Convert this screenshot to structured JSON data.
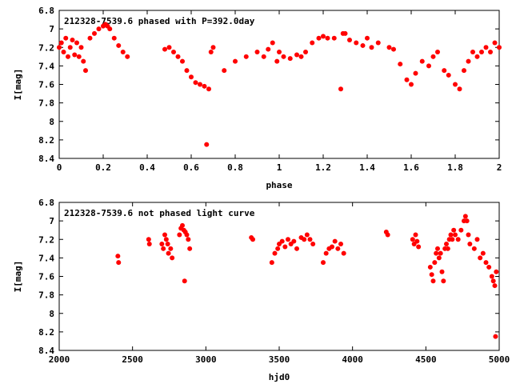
{
  "chart_data": [
    {
      "type": "scatter",
      "title": "212328-7539.6 phased with P=392.0day",
      "xlabel": "phase",
      "ylabel": "I[mag]",
      "xlim": [
        0,
        2
      ],
      "ylim": [
        8.4,
        6.8
      ],
      "y_inverted": true,
      "xticks": [
        "0",
        "0.2",
        "0.4",
        "0.6",
        "0.8",
        "1",
        "1.2",
        "1.4",
        "1.6",
        "1.8",
        "2"
      ],
      "xtick_values": [
        0,
        0.2,
        0.4,
        0.6,
        0.8,
        1.0,
        1.2,
        1.4,
        1.6,
        1.8,
        2.0
      ],
      "yticks": [
        "6.8",
        "7",
        "7.2",
        "7.4",
        "7.6",
        "7.8",
        "8",
        "8.2",
        "8.4"
      ],
      "ytick_values": [
        6.8,
        7.0,
        7.2,
        7.4,
        7.6,
        7.8,
        8.0,
        8.2,
        8.4
      ],
      "marker_color": "#ff0000",
      "grid": false,
      "series": [
        {
          "points": [
            [
              0.0,
              7.2
            ],
            [
              0.01,
              7.15
            ],
            [
              0.02,
              7.25
            ],
            [
              0.03,
              7.1
            ],
            [
              0.04,
              7.3
            ],
            [
              0.05,
              7.2
            ],
            [
              0.06,
              7.12
            ],
            [
              0.07,
              7.28
            ],
            [
              0.08,
              7.15
            ],
            [
              0.09,
              7.3
            ],
            [
              0.1,
              7.2
            ],
            [
              0.11,
              7.35
            ],
            [
              0.12,
              7.45
            ],
            [
              0.14,
              7.1
            ],
            [
              0.16,
              7.05
            ],
            [
              0.18,
              7.0
            ],
            [
              0.2,
              6.97
            ],
            [
              0.21,
              6.95
            ],
            [
              0.22,
              6.97
            ],
            [
              0.23,
              7.0
            ],
            [
              0.25,
              7.1
            ],
            [
              0.27,
              7.18
            ],
            [
              0.29,
              7.25
            ],
            [
              0.31,
              7.3
            ],
            [
              0.48,
              7.22
            ],
            [
              0.5,
              7.2
            ],
            [
              0.52,
              7.25
            ],
            [
              0.54,
              7.3
            ],
            [
              0.56,
              7.35
            ],
            [
              0.58,
              7.45
            ],
            [
              0.6,
              7.52
            ],
            [
              0.62,
              7.58
            ],
            [
              0.64,
              7.6
            ],
            [
              0.66,
              7.62
            ],
            [
              0.67,
              8.25
            ],
            [
              0.68,
              7.65
            ],
            [
              0.69,
              7.25
            ],
            [
              0.7,
              7.2
            ],
            [
              0.75,
              7.45
            ],
            [
              0.8,
              7.35
            ],
            [
              0.85,
              7.3
            ],
            [
              0.9,
              7.25
            ],
            [
              0.93,
              7.3
            ],
            [
              0.95,
              7.22
            ],
            [
              0.97,
              7.15
            ],
            [
              0.99,
              7.35
            ],
            [
              1.0,
              7.25
            ],
            [
              1.02,
              7.3
            ],
            [
              1.05,
              7.32
            ],
            [
              1.08,
              7.28
            ],
            [
              1.1,
              7.3
            ],
            [
              1.12,
              7.25
            ],
            [
              1.15,
              7.15
            ],
            [
              1.18,
              7.1
            ],
            [
              1.2,
              7.08
            ],
            [
              1.22,
              7.1
            ],
            [
              1.25,
              7.1
            ],
            [
              1.28,
              7.65
            ],
            [
              1.29,
              7.05
            ],
            [
              1.3,
              7.05
            ],
            [
              1.32,
              7.12
            ],
            [
              1.35,
              7.15
            ],
            [
              1.38,
              7.18
            ],
            [
              1.4,
              7.1
            ],
            [
              1.42,
              7.2
            ],
            [
              1.45,
              7.15
            ],
            [
              1.5,
              7.2
            ],
            [
              1.52,
              7.22
            ],
            [
              1.55,
              7.38
            ],
            [
              1.58,
              7.55
            ],
            [
              1.6,
              7.6
            ],
            [
              1.62,
              7.48
            ],
            [
              1.65,
              7.35
            ],
            [
              1.68,
              7.4
            ],
            [
              1.7,
              7.3
            ],
            [
              1.72,
              7.25
            ],
            [
              1.75,
              7.45
            ],
            [
              1.77,
              7.5
            ],
            [
              1.8,
              7.6
            ],
            [
              1.82,
              7.65
            ],
            [
              1.84,
              7.45
            ],
            [
              1.86,
              7.35
            ],
            [
              1.88,
              7.25
            ],
            [
              1.9,
              7.3
            ],
            [
              1.92,
              7.25
            ],
            [
              1.94,
              7.2
            ],
            [
              1.96,
              7.25
            ],
            [
              1.98,
              7.15
            ],
            [
              2.0,
              7.2
            ]
          ]
        }
      ]
    },
    {
      "type": "scatter",
      "title": "212328-7539.6 not phased light curve",
      "xlabel": "hjd0",
      "ylabel": "I[mag]",
      "xlim": [
        2000,
        5000
      ],
      "ylim": [
        8.4,
        6.8
      ],
      "y_inverted": true,
      "xticks": [
        "2000",
        "2500",
        "3000",
        "3500",
        "4000",
        "4500",
        "5000"
      ],
      "xtick_values": [
        2000,
        2500,
        3000,
        3500,
        4000,
        4500,
        5000
      ],
      "yticks": [
        "6.8",
        "7",
        "7.2",
        "7.4",
        "7.6",
        "7.8",
        "8",
        "8.2",
        "8.4"
      ],
      "ytick_values": [
        6.8,
        7.0,
        7.2,
        7.4,
        7.6,
        7.8,
        8.0,
        8.2,
        8.4
      ],
      "marker_color": "#ff0000",
      "grid": false,
      "series": [
        {
          "points": [
            [
              2400,
              7.38
            ],
            [
              2405,
              7.45
            ],
            [
              2610,
              7.2
            ],
            [
              2615,
              7.25
            ],
            [
              2700,
              7.25
            ],
            [
              2710,
              7.3
            ],
            [
              2720,
              7.15
            ],
            [
              2730,
              7.2
            ],
            [
              2740,
              7.25
            ],
            [
              2745,
              7.35
            ],
            [
              2760,
              7.3
            ],
            [
              2770,
              7.4
            ],
            [
              2820,
              7.15
            ],
            [
              2830,
              7.08
            ],
            [
              2840,
              7.05
            ],
            [
              2850,
              7.1
            ],
            [
              2855,
              7.65
            ],
            [
              2860,
              7.12
            ],
            [
              2870,
              7.15
            ],
            [
              2880,
              7.2
            ],
            [
              2890,
              7.3
            ],
            [
              3310,
              7.18
            ],
            [
              3320,
              7.2
            ],
            [
              3450,
              7.45
            ],
            [
              3470,
              7.35
            ],
            [
              3490,
              7.3
            ],
            [
              3500,
              7.25
            ],
            [
              3520,
              7.22
            ],
            [
              3540,
              7.28
            ],
            [
              3560,
              7.2
            ],
            [
              3580,
              7.25
            ],
            [
              3600,
              7.22
            ],
            [
              3620,
              7.3
            ],
            [
              3650,
              7.18
            ],
            [
              3670,
              7.2
            ],
            [
              3690,
              7.15
            ],
            [
              3710,
              7.2
            ],
            [
              3730,
              7.25
            ],
            [
              3800,
              7.45
            ],
            [
              3820,
              7.35
            ],
            [
              3840,
              7.3
            ],
            [
              3860,
              7.28
            ],
            [
              3880,
              7.22
            ],
            [
              3900,
              7.3
            ],
            [
              3920,
              7.25
            ],
            [
              3940,
              7.35
            ],
            [
              4230,
              7.12
            ],
            [
              4240,
              7.15
            ],
            [
              4410,
              7.2
            ],
            [
              4420,
              7.25
            ],
            [
              4430,
              7.15
            ],
            [
              4440,
              7.22
            ],
            [
              4450,
              7.28
            ],
            [
              4530,
              7.5
            ],
            [
              4540,
              7.58
            ],
            [
              4550,
              7.65
            ],
            [
              4560,
              7.45
            ],
            [
              4570,
              7.35
            ],
            [
              4580,
              7.3
            ],
            [
              4590,
              7.4
            ],
            [
              4600,
              7.35
            ],
            [
              4610,
              7.55
            ],
            [
              4620,
              7.65
            ],
            [
              4630,
              7.3
            ],
            [
              4640,
              7.25
            ],
            [
              4650,
              7.3
            ],
            [
              4660,
              7.2
            ],
            [
              4670,
              7.15
            ],
            [
              4680,
              7.2
            ],
            [
              4690,
              7.1
            ],
            [
              4700,
              7.15
            ],
            [
              4720,
              7.2
            ],
            [
              4740,
              7.1
            ],
            [
              4760,
              7.0
            ],
            [
              4770,
              6.95
            ],
            [
              4780,
              7.0
            ],
            [
              4790,
              7.15
            ],
            [
              4800,
              7.25
            ],
            [
              4830,
              7.3
            ],
            [
              4850,
              7.2
            ],
            [
              4870,
              7.4
            ],
            [
              4890,
              7.35
            ],
            [
              4910,
              7.45
            ],
            [
              4930,
              7.5
            ],
            [
              4950,
              7.6
            ],
            [
              4960,
              7.65
            ],
            [
              4970,
              7.7
            ],
            [
              4980,
              7.55
            ],
            [
              4975,
              8.25
            ]
          ]
        }
      ]
    }
  ]
}
